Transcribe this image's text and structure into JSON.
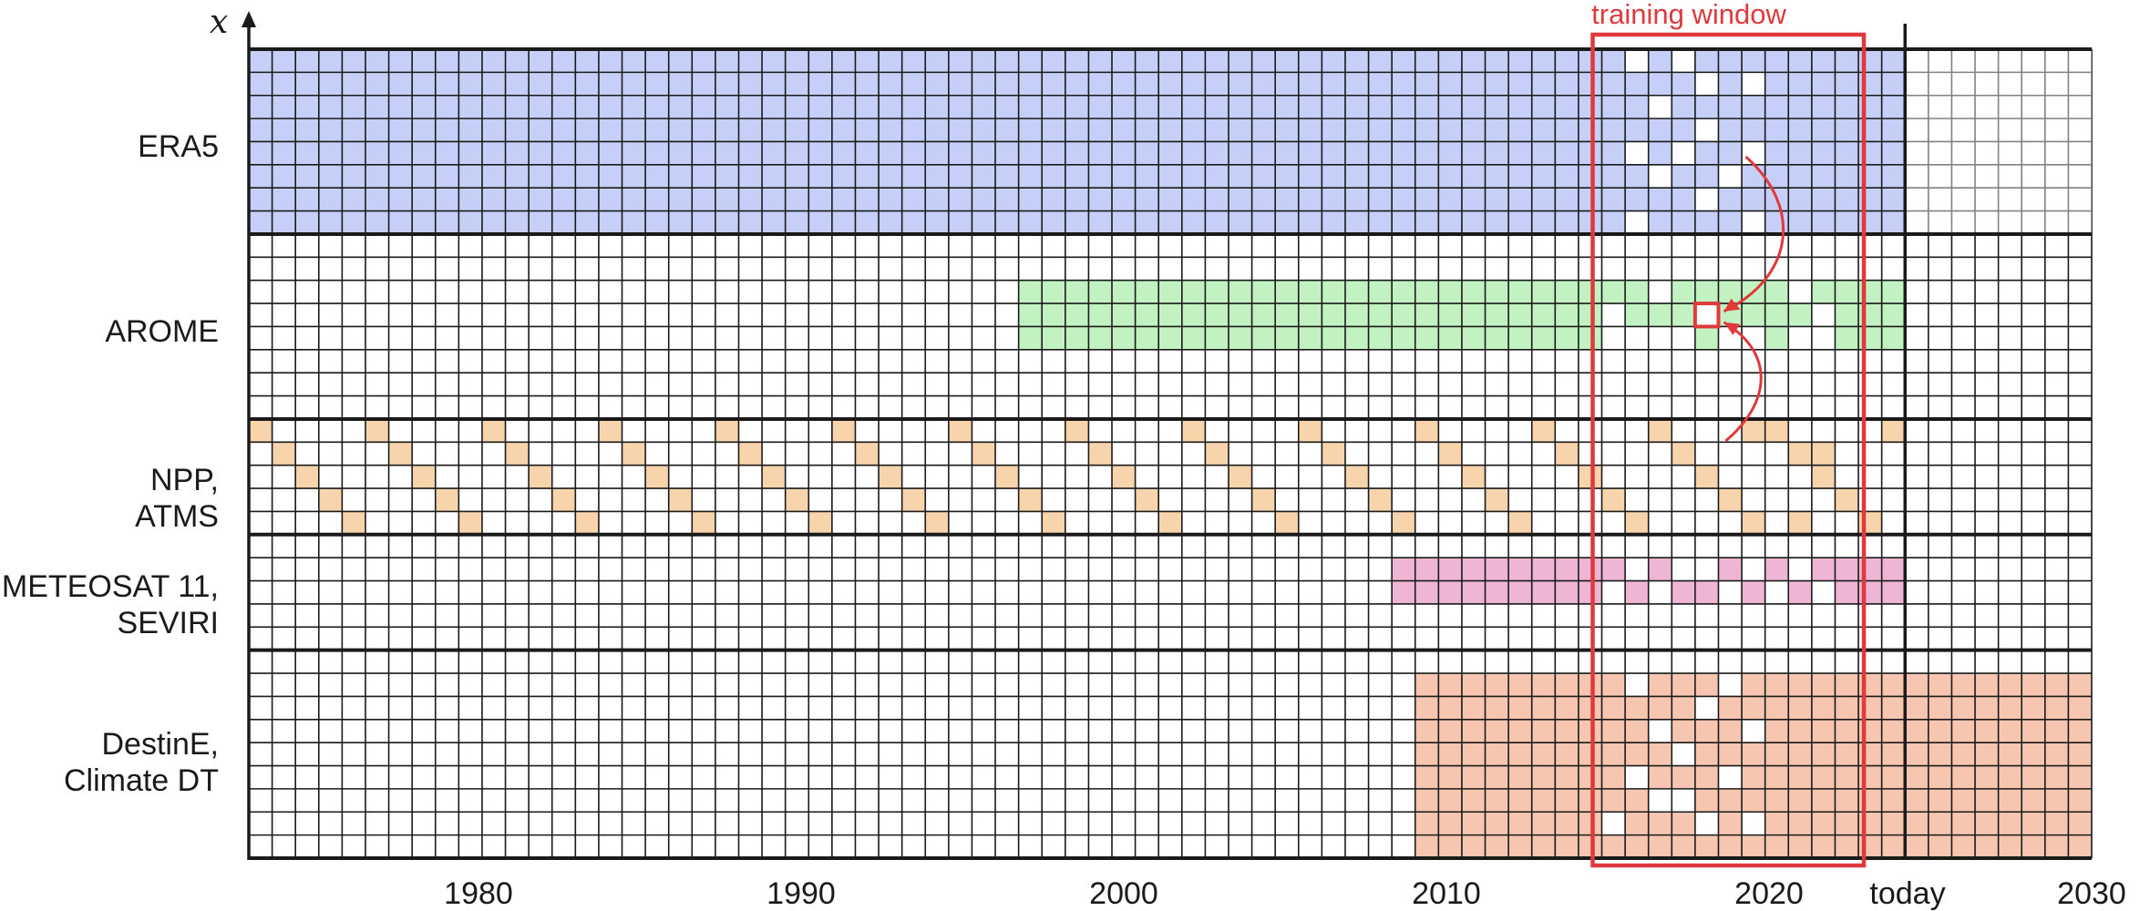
{
  "axis": {
    "y_label": "x",
    "x_ticks": [
      "1980",
      "1990",
      "2000",
      "2010",
      "2020",
      "today",
      "2030"
    ],
    "x_tick_years": [
      1980,
      1990,
      2000,
      2010,
      2020,
      2024.5,
      2030
    ]
  },
  "timeline": {
    "start_year": 1972.9,
    "end_year": 2030,
    "today_year": 2024.5
  },
  "training_window": {
    "label": "training window",
    "start_year": 2015,
    "end_year": 2022.5
  },
  "rows": [
    {
      "id": "era5",
      "label_lines": [
        "ERA5"
      ],
      "start_year": 1972.9,
      "end_year": 2024.5
    },
    {
      "id": "arome",
      "label_lines": [
        "AROME"
      ],
      "start_year": 1996.5,
      "end_year": 2024.5
    },
    {
      "id": "npp",
      "label_lines": [
        "NPP,",
        "ATMS"
      ],
      "pattern": "diagonal"
    },
    {
      "id": "meteosat",
      "label_lines": [
        "METEOSAT 11,",
        "SEVIRI"
      ],
      "start_year": 2008,
      "end_year": 2024.5
    },
    {
      "id": "destine",
      "label_lines": [
        "DestinE,",
        "Climate DT"
      ],
      "start_year": 2009.4,
      "end_year": 2030
    }
  ],
  "colors": {
    "era5": "#c6cff8",
    "arome": "#c2f2c2",
    "npp": "#f7d4ac",
    "meteosat": "#eeb5d5",
    "destine": "#f6c6b0",
    "grid": "#1a1a1a",
    "training_window": "#e0393b"
  }
}
